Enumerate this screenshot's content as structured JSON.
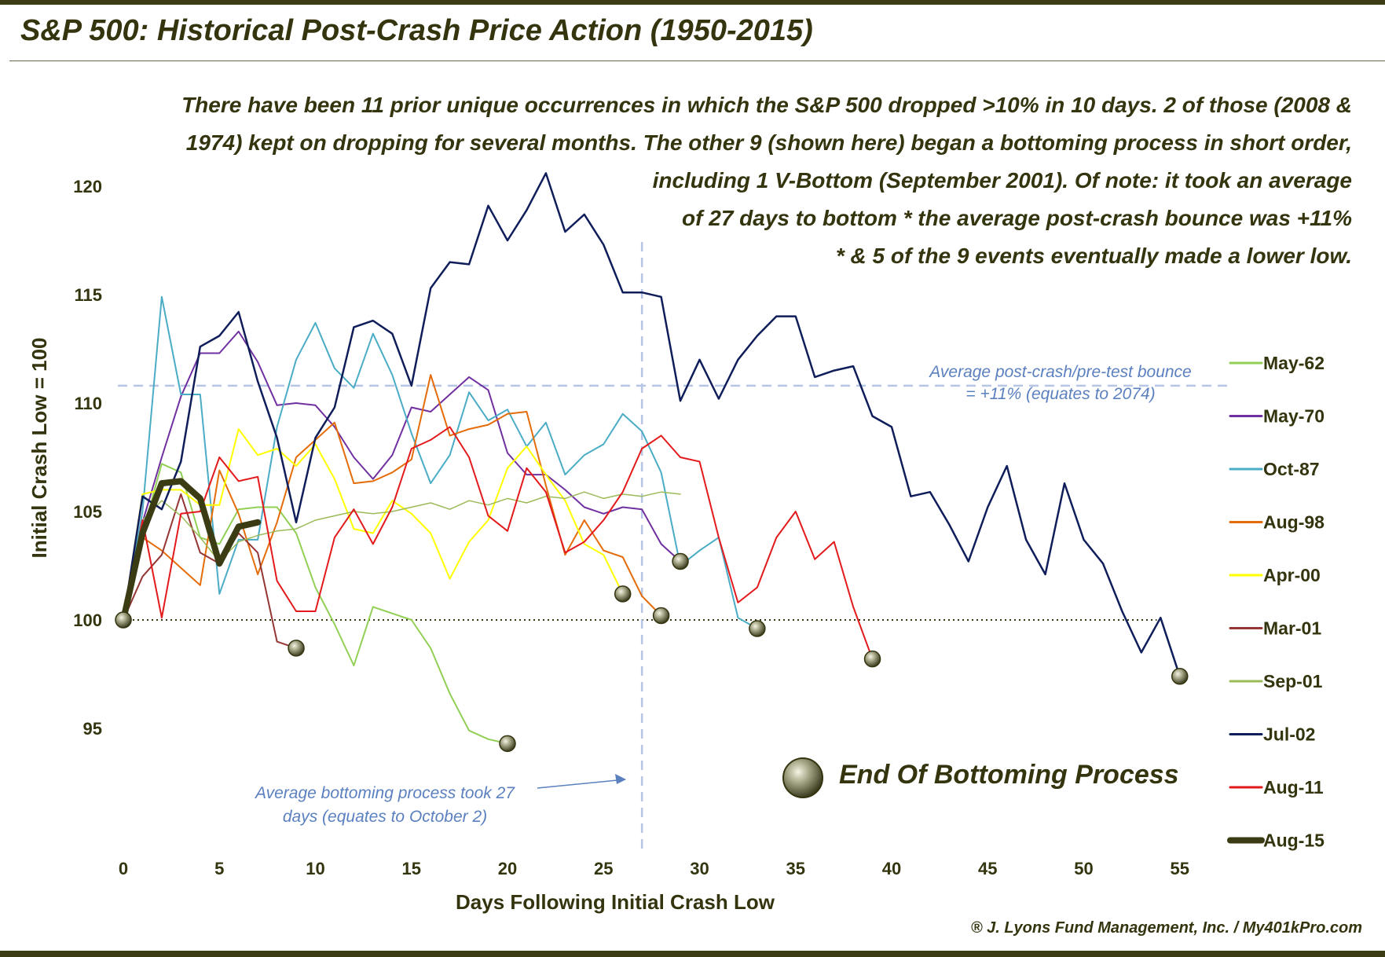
{
  "chart_data": {
    "type": "line",
    "title": "S&P 500: Historical Post-Crash Price Action (1950-2015)",
    "xlabel": "Days Following Initial Crash Low",
    "ylabel": "Initial Crash Low = 100",
    "xlim": [
      0,
      55
    ],
    "ylim": [
      91,
      121
    ],
    "xticks": [
      0,
      5,
      10,
      15,
      20,
      25,
      30,
      35,
      40,
      45,
      50,
      55
    ],
    "yticks": [
      95,
      100,
      105,
      110,
      115,
      120
    ],
    "baseline": 100,
    "avg_bounce_level": 110.8,
    "avg_bottom_day": 27,
    "series": [
      {
        "name": "May-62",
        "color": "#92cf55",
        "width": 2,
        "end_marker": true,
        "values": [
          100,
          104.0,
          107.2,
          106.8,
          103.8,
          103.5,
          105.1,
          105.2,
          105.2,
          104.0,
          101.5,
          99.8,
          97.9,
          100.6,
          100.3,
          100.0,
          98.7,
          96.6,
          94.9,
          94.5,
          94.3
        ]
      },
      {
        "name": "May-70",
        "color": "#7030a0",
        "width": 2,
        "end_marker": true,
        "values": [
          100,
          104.5,
          107.5,
          110.3,
          112.3,
          112.3,
          113.3,
          111.9,
          109.9,
          110.0,
          109.9,
          108.9,
          107.5,
          106.5,
          107.6,
          109.8,
          109.6,
          110.4,
          111.2,
          110.6,
          107.7,
          106.7,
          106.7,
          106.0,
          105.2,
          104.9,
          105.2,
          105.1,
          103.5,
          102.7
        ]
      },
      {
        "name": "Oct-87",
        "color": "#4bacc6",
        "width": 2,
        "end_marker": true,
        "values": [
          100,
          105.0,
          114.9,
          110.4,
          110.4,
          101.2,
          103.7,
          103.7,
          108.9,
          112.0,
          113.7,
          111.6,
          110.7,
          113.2,
          111.3,
          108.6,
          106.3,
          107.6,
          110.5,
          109.2,
          109.7,
          108.0,
          109.1,
          106.7,
          107.6,
          108.1,
          109.5,
          108.7,
          106.8,
          102.5,
          103.2,
          103.8,
          100.1,
          99.6
        ]
      },
      {
        "name": "Aug-98",
        "color": "#e46c0a",
        "width": 2,
        "end_marker": true,
        "values": [
          100,
          103.8,
          103.2,
          102.4,
          101.6,
          106.9,
          104.9,
          102.1,
          104.5,
          107.5,
          108.3,
          109.1,
          106.3,
          106.4,
          106.8,
          107.4,
          111.3,
          108.5,
          108.8,
          109.0,
          109.5,
          109.6,
          106.2,
          103.0,
          104.6,
          103.2,
          102.9,
          101.1,
          100.2
        ]
      },
      {
        "name": "Apr-00",
        "color": "#ffff00",
        "width": 2,
        "end_marker": true,
        "values": [
          100,
          105.8,
          106.0,
          106.0,
          105.3,
          105.3,
          108.8,
          107.6,
          107.9,
          107.1,
          108.1,
          106.5,
          104.2,
          104.0,
          105.5,
          104.9,
          104.0,
          101.9,
          103.6,
          104.6,
          107.0,
          108.0,
          106.7,
          105.5,
          103.5,
          103.0,
          101.2
        ]
      },
      {
        "name": "Mar-01",
        "color": "#943634",
        "width": 2,
        "end_marker": true,
        "values": [
          100,
          102.0,
          103.0,
          105.8,
          103.1,
          102.6,
          104.0,
          103.1,
          99.0,
          98.7
        ]
      },
      {
        "name": "Sep-01",
        "color": "#9bbb59",
        "width": 1.5,
        "end_marker": false,
        "values": [
          100,
          104.6,
          105.5,
          104.8,
          103.8,
          102.7,
          103.6,
          103.9,
          104.1,
          104.2,
          104.6,
          104.8,
          105.0,
          104.9,
          105.0,
          105.2,
          105.4,
          105.1,
          105.5,
          105.3,
          105.6,
          105.4,
          105.7,
          105.6,
          105.9,
          105.6,
          105.8,
          105.7,
          105.9,
          105.8
        ]
      },
      {
        "name": "Jul-02",
        "color": "#0f1e5a",
        "width": 2.5,
        "end_marker": true,
        "values": [
          100,
          105.7,
          105.1,
          107.3,
          112.6,
          113.1,
          114.2,
          111.0,
          108.4,
          104.5,
          108.4,
          109.8,
          113.5,
          113.8,
          113.2,
          110.8,
          115.3,
          116.5,
          116.4,
          119.1,
          117.5,
          118.9,
          120.6,
          117.9,
          118.7,
          117.3,
          115.1,
          115.1,
          114.9,
          110.1,
          112.0,
          110.2,
          112.0,
          113.1,
          114.0,
          114.0,
          111.2,
          111.5,
          111.7,
          109.4,
          108.9,
          105.7,
          105.9,
          104.4,
          102.7,
          105.2,
          107.1,
          103.7,
          102.1,
          106.3,
          103.7,
          102.6,
          100.4,
          98.5,
          100.1,
          97.4
        ]
      },
      {
        "name": "Aug-11",
        "color": "#e31a1c",
        "width": 2,
        "end_marker": true,
        "values": [
          100,
          104.6,
          100.1,
          104.9,
          105.0,
          107.5,
          106.4,
          106.6,
          101.8,
          100.4,
          100.4,
          103.8,
          105.1,
          103.5,
          105.2,
          107.9,
          108.3,
          108.9,
          107.5,
          104.8,
          104.1,
          107.0,
          105.9,
          103.1,
          103.6,
          104.6,
          105.9,
          107.9,
          108.5,
          107.5,
          107.3,
          103.8,
          100.8,
          101.5,
          103.8,
          105.0,
          102.8,
          103.6,
          100.6,
          98.2
        ]
      },
      {
        "name": "Aug-15",
        "color": "#3b3b14",
        "width": 8,
        "end_marker": false,
        "values": [
          100,
          104.0,
          106.3,
          106.4,
          105.6,
          102.6,
          104.3,
          104.5
        ]
      }
    ],
    "legend": "right"
  },
  "annotations": {
    "lines": [
      "There have been 11 prior unique occurrences in which the S&P 500 dropped >10% in 10 days. 2 of those (2008 &",
      "1974) kept on dropping for several months. The other 9 (shown here) began a bottoming process in short order,",
      "including 1 V-Bottom (September 2001). Of note: it took an average",
      "of 27 days to bottom  * the average post-crash bounce was +11%",
      "* & 5 of the 9 events eventually made a lower low."
    ],
    "bounce_note_1": "Average post-crash/pre-test bounce",
    "bounce_note_2": "= +11% (equates to 2074)",
    "bottom_note_1": "Average bottoming process took 27",
    "bottom_note_2": "days (equates to October 2)",
    "end_marker_label": "End Of Bottoming Process",
    "copyright": "® J. Lyons Fund Management, Inc. / My401kPro.com"
  }
}
